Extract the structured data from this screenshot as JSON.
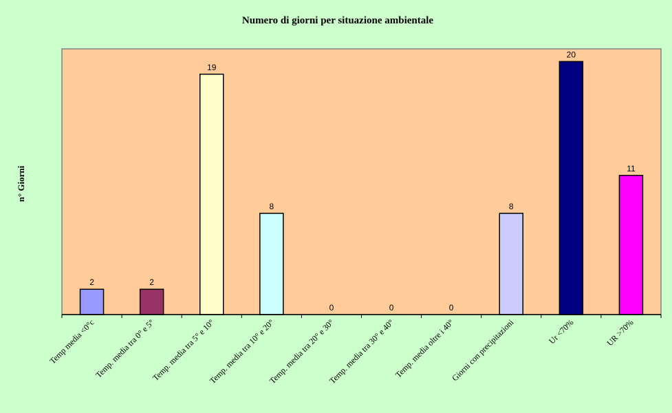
{
  "chart_data": {
    "type": "bar",
    "title": "Numero di giorni per situazione ambientale",
    "xlabel": "",
    "ylabel": "n° Giorni",
    "ylim": [
      0,
      21
    ],
    "grid": false,
    "legend": "none",
    "categories": [
      "Temp media <0°c",
      "Temp. media tra 0° e 5°",
      "Temp. media tra 5° e 10°",
      "Temp. media tra 10° e 20°",
      "Temp. media tra 20° e 30°",
      "Temp. media tra 30° e 40°",
      "Temp. media oltre i 40°",
      "Giorni con precipitazioni",
      "Ur <70%",
      "UR >70%"
    ],
    "values": [
      2,
      2,
      19,
      8,
      0,
      0,
      0,
      8,
      20,
      11
    ],
    "colors": [
      "#9999ff",
      "#993366",
      "#ffffcc",
      "#ccffff",
      "#660066",
      "#ff8080",
      "#0066cc",
      "#ccccff",
      "#000080",
      "#ff00ff"
    ],
    "plot_background": "#ffcc99",
    "page_background": "#ccffcc"
  }
}
